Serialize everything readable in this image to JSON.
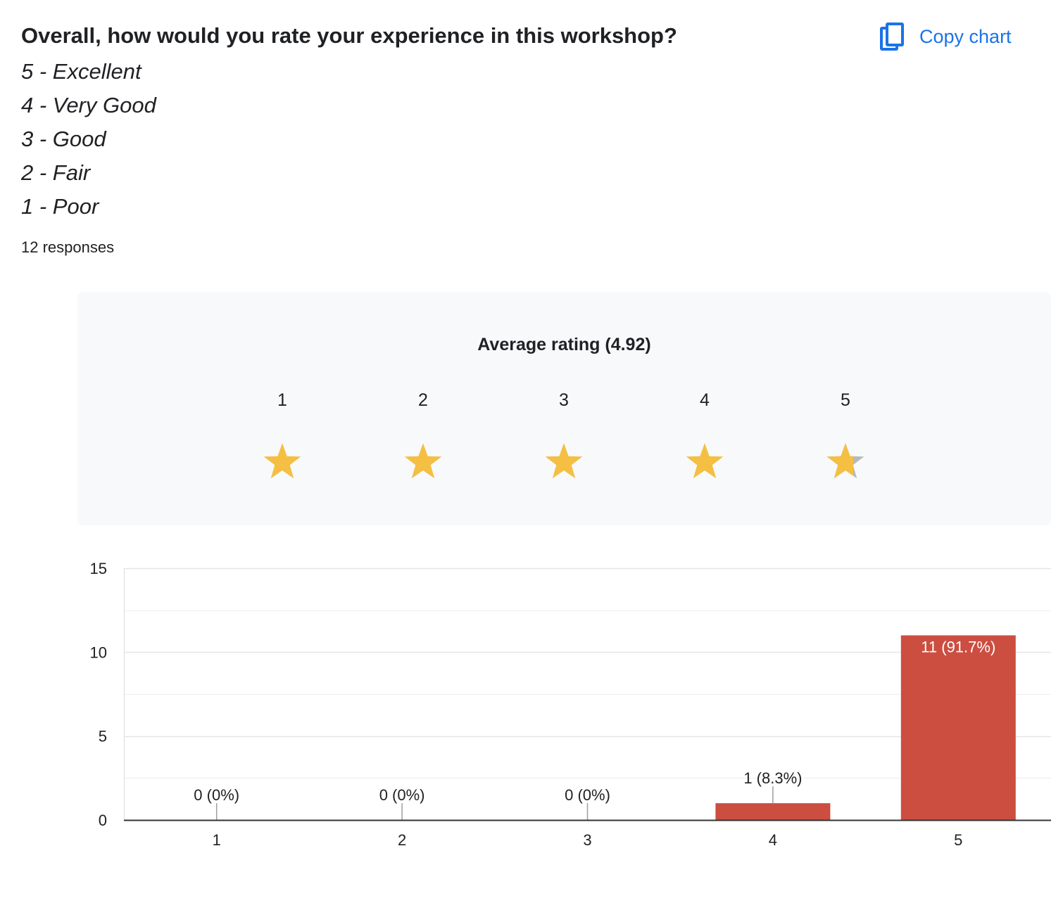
{
  "question": {
    "title": "Overall, how would you rate your experience in this workshop?",
    "scale": [
      "5 - Excellent",
      "4 - Very Good",
      "3 - Good",
      "2 - Fair",
      "1 - Poor"
    ],
    "responses": "12 responses"
  },
  "copy_chart": {
    "label": "Copy chart",
    "icon": "copy-icon",
    "color": "#1a73e8"
  },
  "rating": {
    "title": "Average rating (4.92)",
    "average": 4.92,
    "stars": [
      "1",
      "2",
      "3",
      "4",
      "5"
    ],
    "star_color": "#f4bf42",
    "empty_star_color": "#b7b9bd"
  },
  "chart_data": {
    "type": "bar",
    "categories": [
      "1",
      "2",
      "3",
      "4",
      "5"
    ],
    "values": [
      0,
      0,
      0,
      1,
      11
    ],
    "data_labels": [
      "0 (0%)",
      "0 (0%)",
      "0 (0%)",
      "1 (8.3%)",
      "11 (91.7%)"
    ],
    "ylim": [
      0,
      15
    ],
    "yticks": [
      "0",
      "5",
      "10",
      "15"
    ],
    "ytick_values": [
      0,
      5,
      10,
      15
    ],
    "grid": true,
    "bar_color": "#cc4e41"
  }
}
